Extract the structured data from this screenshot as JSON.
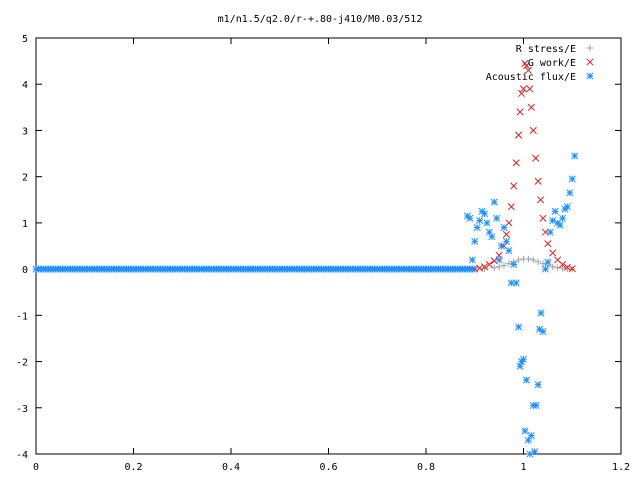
{
  "chart_data": {
    "type": "scatter",
    "title": "m1/n1.5/q2.0/r-+.80-j410/M0.03/512",
    "xlabel": "",
    "ylabel": "",
    "xlim": [
      0,
      1.2
    ],
    "ylim": [
      -4,
      5
    ],
    "x_ticks": [
      "0",
      "0.2",
      "0.4",
      "0.6",
      "0.8",
      "1",
      "1.2"
    ],
    "y_ticks": [
      "-4",
      "-3",
      "-2",
      "-1",
      "0",
      "1",
      "2",
      "3",
      "4",
      "5"
    ],
    "legend_position": "top-right",
    "series": [
      {
        "name": "R stress/E",
        "marker": "plus",
        "color": "#a0a0a0",
        "points": [
          [
            0.9,
            0.0
          ],
          [
            0.92,
            0.01
          ],
          [
            0.94,
            0.03
          ],
          [
            0.95,
            0.05
          ],
          [
            0.96,
            0.08
          ],
          [
            0.97,
            0.12
          ],
          [
            0.98,
            0.16
          ],
          [
            0.99,
            0.2
          ],
          [
            1.0,
            0.22
          ],
          [
            1.01,
            0.22
          ],
          [
            1.02,
            0.2
          ],
          [
            1.03,
            0.16
          ],
          [
            1.04,
            0.12
          ],
          [
            1.05,
            0.08
          ],
          [
            1.06,
            0.05
          ],
          [
            1.07,
            0.03
          ],
          [
            1.08,
            0.02
          ],
          [
            1.09,
            0.01
          ],
          [
            1.1,
            0.0
          ]
        ]
      },
      {
        "name": "G work/E",
        "marker": "cross",
        "color": "#e02020",
        "points": [
          [
            0.9,
            0.0
          ],
          [
            0.91,
            0.02
          ],
          [
            0.92,
            0.05
          ],
          [
            0.93,
            0.1
          ],
          [
            0.94,
            0.18
          ],
          [
            0.95,
            0.3
          ],
          [
            0.96,
            0.5
          ],
          [
            0.965,
            0.75
          ],
          [
            0.97,
            1.0
          ],
          [
            0.975,
            1.35
          ],
          [
            0.98,
            1.8
          ],
          [
            0.985,
            2.3
          ],
          [
            0.99,
            2.9
          ],
          [
            0.993,
            3.4
          ],
          [
            0.996,
            3.8
          ],
          [
            1.0,
            3.9
          ],
          [
            1.003,
            4.45
          ],
          [
            1.006,
            4.4
          ],
          [
            1.01,
            4.3
          ],
          [
            1.013,
            3.9
          ],
          [
            1.016,
            3.5
          ],
          [
            1.02,
            3.0
          ],
          [
            1.025,
            2.4
          ],
          [
            1.03,
            1.9
          ],
          [
            1.035,
            1.5
          ],
          [
            1.04,
            1.1
          ],
          [
            1.045,
            0.8
          ],
          [
            1.05,
            0.55
          ],
          [
            1.06,
            0.35
          ],
          [
            1.07,
            0.2
          ],
          [
            1.08,
            0.1
          ],
          [
            1.09,
            0.04
          ],
          [
            1.1,
            0.01
          ]
        ]
      },
      {
        "name": "Acoustic flux/E",
        "marker": "star",
        "color": "#1e90ff",
        "baseline": {
          "from": 0.0,
          "to": 0.895,
          "step": 0.005,
          "y": 0.0
        },
        "points": [
          [
            0.885,
            1.15
          ],
          [
            0.89,
            1.1
          ],
          [
            0.895,
            0.2
          ],
          [
            0.9,
            0.6
          ],
          [
            0.905,
            0.9
          ],
          [
            0.91,
            1.05
          ],
          [
            0.915,
            1.25
          ],
          [
            0.92,
            1.2
          ],
          [
            0.925,
            1.0
          ],
          [
            0.93,
            0.8
          ],
          [
            0.935,
            0.7
          ],
          [
            0.94,
            1.45
          ],
          [
            0.945,
            1.1
          ],
          [
            0.95,
            0.2
          ],
          [
            0.955,
            0.5
          ],
          [
            0.96,
            0.9
          ],
          [
            0.965,
            0.6
          ],
          [
            0.97,
            0.4
          ],
          [
            0.975,
            -0.3
          ],
          [
            0.98,
            0.1
          ],
          [
            0.985,
            -0.3
          ],
          [
            0.99,
            -1.25
          ],
          [
            0.993,
            -2.1
          ],
          [
            0.996,
            -2.0
          ],
          [
            1.0,
            -1.95
          ],
          [
            1.003,
            -3.5
          ],
          [
            1.006,
            -2.4
          ],
          [
            1.01,
            -3.7
          ],
          [
            1.013,
            -4.0
          ],
          [
            1.016,
            -3.6
          ],
          [
            1.02,
            -2.95
          ],
          [
            1.023,
            -3.95
          ],
          [
            1.026,
            -2.95
          ],
          [
            1.03,
            -2.5
          ],
          [
            1.033,
            -1.3
          ],
          [
            1.036,
            -0.95
          ],
          [
            1.04,
            -1.35
          ],
          [
            1.045,
            0.0
          ],
          [
            1.05,
            0.15
          ],
          [
            1.055,
            0.8
          ],
          [
            1.06,
            1.05
          ],
          [
            1.065,
            1.25
          ],
          [
            1.07,
            1.0
          ],
          [
            1.075,
            0.95
          ],
          [
            1.08,
            1.1
          ],
          [
            1.085,
            1.3
          ],
          [
            1.09,
            1.35
          ],
          [
            1.095,
            1.65
          ],
          [
            1.1,
            1.95
          ],
          [
            1.105,
            2.45
          ]
        ]
      }
    ]
  }
}
